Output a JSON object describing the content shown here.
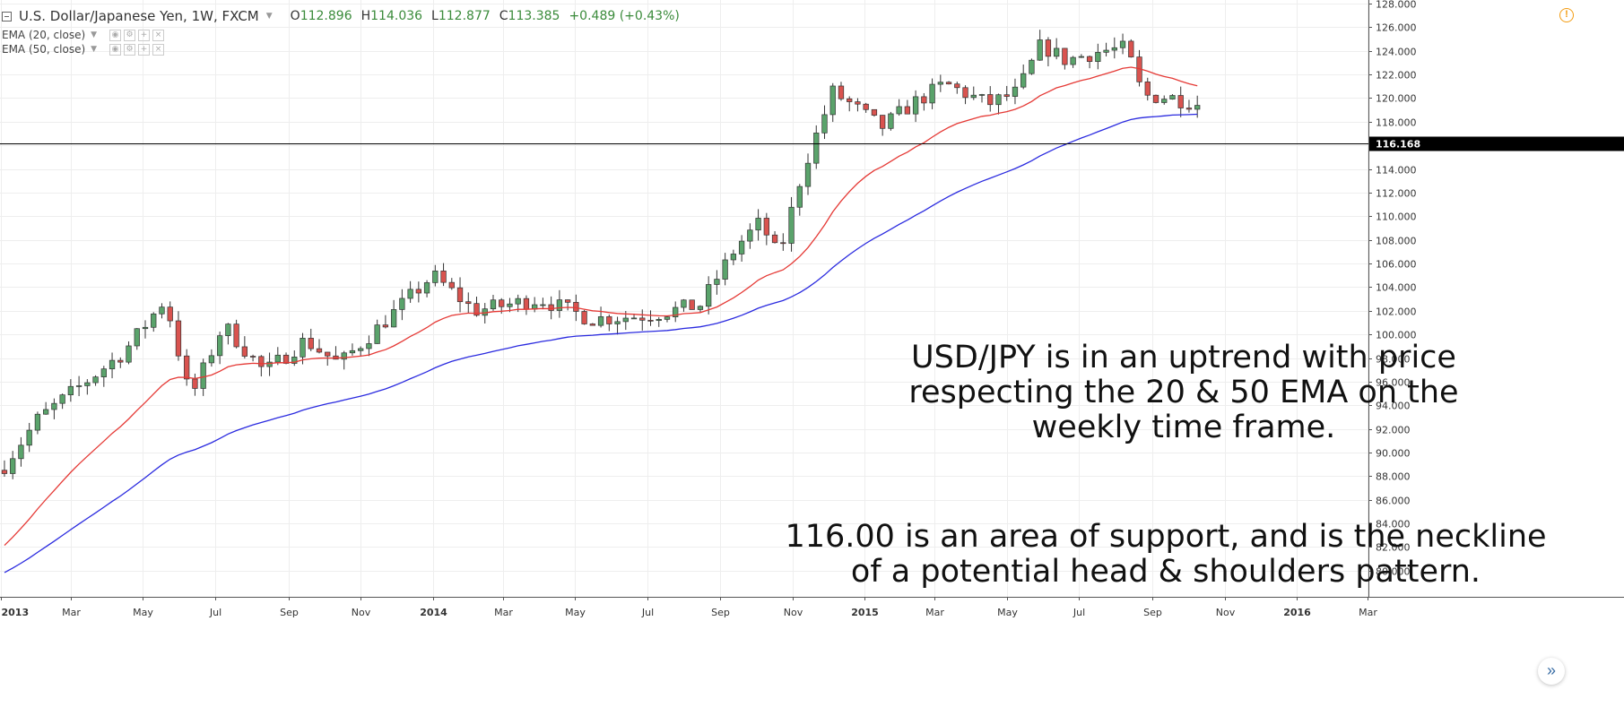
{
  "header": {
    "symbol": "U.S. Dollar/Japanese Yen, 1W, FXCM",
    "open_label": "O",
    "open": "112.896",
    "high_label": "H",
    "high": "114.036",
    "low_label": "L",
    "low": "112.877",
    "close_label": "C",
    "close": "113.385",
    "change": "+0.489 (+0.43%)"
  },
  "studies": [
    {
      "label": "EMA (20, close)",
      "color": "#e53935"
    },
    {
      "label": "EMA (50, close)",
      "color": "#2a2adf"
    }
  ],
  "annotations": [
    "USD/JPY is in an uptrend with price\nrespecting the 20 & 50 EMA on the\nweekly time frame.",
    "116.00 is an area of support, and is the neckline\nof a potential head & shoulders pattern."
  ],
  "icons": {
    "alert": "alert-icon",
    "scroll": "scroll-right-icon"
  },
  "colors": {
    "up": "#5aa36b",
    "down": "#d9534f",
    "wick": "#333333",
    "grid": "#eeeeee",
    "support_line": "#000000"
  },
  "chart_data": {
    "type": "candlestick",
    "interval": "1W",
    "y_axis": {
      "min": 79,
      "max": 128,
      "ticks": [
        "80.000",
        "82.000",
        "84.000",
        "86.000",
        "88.000",
        "90.000",
        "92.000",
        "94.000",
        "96.000",
        "98.000",
        "100.000",
        "102.000",
        "104.000",
        "106.000",
        "108.000",
        "110.000",
        "112.000",
        "114.000",
        "116.000",
        "118.000",
        "120.000",
        "122.000",
        "124.000",
        "126.000",
        "128.000"
      ]
    },
    "x_axis": {
      "start": "2013-01-01",
      "labels": [
        {
          "date": "2013-01-01",
          "label": "2013",
          "bold": true
        },
        {
          "date": "2013-03-01",
          "label": "Mar"
        },
        {
          "date": "2013-05-01",
          "label": "May"
        },
        {
          "date": "2013-07-01",
          "label": "Jul"
        },
        {
          "date": "2013-09-01",
          "label": "Sep"
        },
        {
          "date": "2013-11-01",
          "label": "Nov"
        },
        {
          "date": "2014-01-01",
          "label": "2014",
          "bold": true
        },
        {
          "date": "2014-03-01",
          "label": "Mar"
        },
        {
          "date": "2014-05-01",
          "label": "May"
        },
        {
          "date": "2014-07-01",
          "label": "Jul"
        },
        {
          "date": "2014-09-01",
          "label": "Sep"
        },
        {
          "date": "2014-11-01",
          "label": "Nov"
        },
        {
          "date": "2015-01-01",
          "label": "2015",
          "bold": true
        },
        {
          "date": "2015-03-01",
          "label": "Mar"
        },
        {
          "date": "2015-05-01",
          "label": "May"
        },
        {
          "date": "2015-07-01",
          "label": "Jul"
        },
        {
          "date": "2015-09-01",
          "label": "Sep"
        },
        {
          "date": "2015-11-01",
          "label": "Nov"
        },
        {
          "date": "2016-01-01",
          "label": "2016",
          "bold": true
        },
        {
          "date": "2016-03-01",
          "label": "Mar"
        }
      ]
    },
    "support_line": {
      "value": 116.168,
      "label": "116.168"
    },
    "anchors": [
      [
        "2013-01-01",
        88.5
      ],
      [
        "2013-02-01",
        92.8
      ],
      [
        "2013-03-01",
        95.0
      ],
      [
        "2013-04-15",
        98.5
      ],
      [
        "2013-05-20",
        103.0
      ],
      [
        "2013-06-10",
        94.5
      ],
      [
        "2013-07-08",
        100.8
      ],
      [
        "2013-08-12",
        96.8
      ],
      [
        "2013-09-15",
        99.5
      ],
      [
        "2013-10-14",
        97.5
      ],
      [
        "2013-11-15",
        100.5
      ],
      [
        "2014-01-01",
        105.0
      ],
      [
        "2014-02-05",
        102.0
      ],
      [
        "2014-04-01",
        103.0
      ],
      [
        "2014-05-15",
        101.3
      ],
      [
        "2014-07-01",
        101.6
      ],
      [
        "2014-08-15",
        102.5
      ],
      [
        "2014-09-15",
        107.5
      ],
      [
        "2014-10-05",
        109.5
      ],
      [
        "2014-10-20",
        106.5
      ],
      [
        "2014-11-10",
        114.0
      ],
      [
        "2014-12-05",
        120.5
      ],
      [
        "2014-12-20",
        119.5
      ],
      [
        "2015-01-15",
        117.5
      ],
      [
        "2015-02-10",
        119.5
      ],
      [
        "2015-03-10",
        121.2
      ],
      [
        "2015-04-15",
        119.5
      ],
      [
        "2015-05-10",
        120.5
      ],
      [
        "2015-05-30",
        124.5
      ],
      [
        "2015-06-20",
        123.2
      ],
      [
        "2015-07-20",
        124.0
      ],
      [
        "2015-08-10",
        124.2
      ],
      [
        "2015-08-24",
        120.2
      ],
      [
        "2015-09-15",
        120.1
      ],
      [
        "2015-10-10",
        119.5
      ]
    ],
    "ema20_end": 121.1,
    "ema50_end": 118.7
  }
}
